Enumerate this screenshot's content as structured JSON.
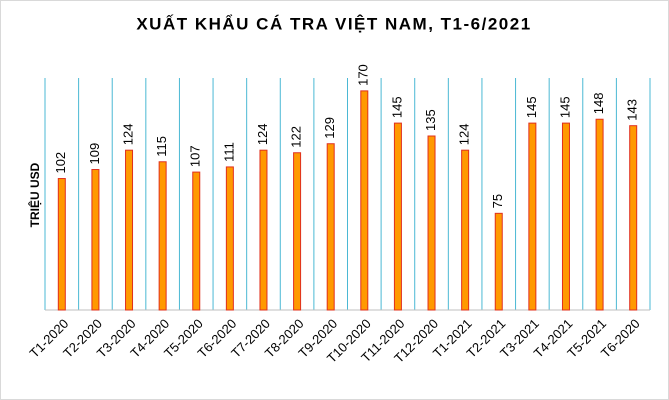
{
  "chart_data": {
    "type": "bar",
    "title": "XUẤT KHẨU CÁ TRA VIỆT NAM, T1-6/2021",
    "y_label": "TRIỆU USD",
    "categories": [
      "T1-2020",
      "T2-2020",
      "T3-2020",
      "T4-2020",
      "T5-2020",
      "T6-2020",
      "T7-2020",
      "T8-2020",
      "T9-2020",
      "T10-2020",
      "T11-2020",
      "T12-2020",
      "T1-2021",
      "T2-2021",
      "T3-2021",
      "T4-2021",
      "T5-2021",
      "T6-2020"
    ],
    "values": [
      102,
      109,
      124,
      115,
      107,
      111,
      124,
      122,
      129,
      170,
      145,
      135,
      124,
      75,
      145,
      145,
      148,
      143
    ],
    "color": "#ff9900",
    "ylim": [
      0,
      180
    ]
  }
}
